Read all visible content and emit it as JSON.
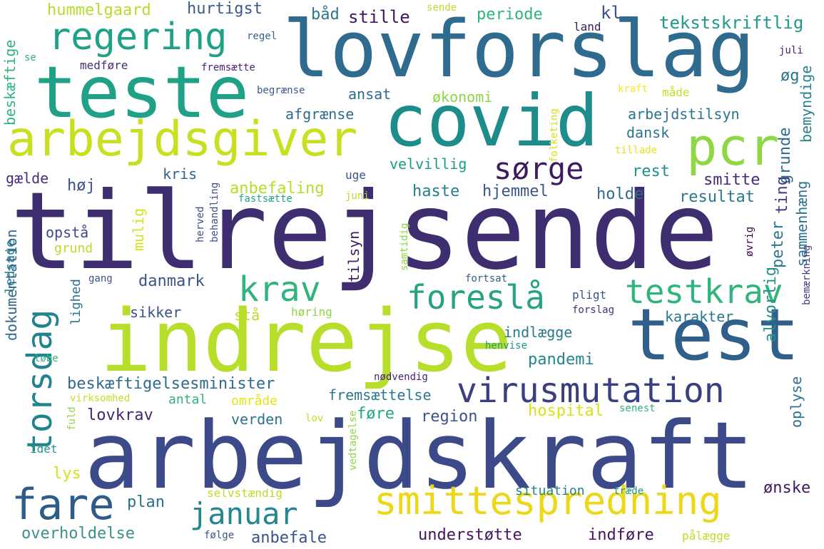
{
  "wordcloud": {
    "words": [
      {
        "text": "tilrejsende",
        "color": "#3e2d6f"
      },
      {
        "text": "arbejdskraft",
        "color": "#3d4a8a"
      },
      {
        "text": "indrejse",
        "color": "#b6de2b"
      },
      {
        "text": "lovforslag",
        "color": "#2e6b8e"
      },
      {
        "text": "covid",
        "color": "#1e8c8a"
      },
      {
        "text": "teste",
        "color": "#1fa187"
      },
      {
        "text": "test",
        "color": "#2f5f8a"
      },
      {
        "text": "arbejdsgiver",
        "color": "#c8e020"
      },
      {
        "text": "smittespredning",
        "color": "#ecd818"
      },
      {
        "text": "regering",
        "color": "#1fa187"
      },
      {
        "text": "pcr",
        "color": "#8fd744"
      },
      {
        "text": "fare",
        "color": "#2d5c8b"
      },
      {
        "text": "virusmutation",
        "color": "#3a3f7f"
      },
      {
        "text": "torsdag",
        "color": "#22838f"
      },
      {
        "text": "testkrav",
        "color": "#2fb47c"
      },
      {
        "text": "foreslå",
        "color": "#26a385"
      },
      {
        "text": "krav",
        "color": "#2fb47c"
      },
      {
        "text": "januar",
        "color": "#24868e"
      },
      {
        "text": "sørge",
        "color": "#3e1a5e"
      },
      {
        "text": "tekstskriftlig",
        "color": "#1f9a8a"
      },
      {
        "text": "hummelgaard",
        "color": "#b5de2b"
      },
      {
        "text": "hurtigst",
        "color": "#3b5a8b"
      },
      {
        "text": "båd",
        "color": "#2a788e"
      },
      {
        "text": "stille",
        "color": "#46135f"
      },
      {
        "text": "periode",
        "color": "#2fb47c"
      },
      {
        "text": "kl",
        "color": "#3b4f8a"
      },
      {
        "text": "sende",
        "color": "#b8de29"
      },
      {
        "text": "land",
        "color": "#3e1a5e"
      },
      {
        "text": "regel",
        "color": "#35608d"
      },
      {
        "text": "se",
        "color": "#2fb47c"
      },
      {
        "text": "juli",
        "color": "#481f70"
      },
      {
        "text": "medføre",
        "color": "#472e7c"
      },
      {
        "text": "fremsætte",
        "color": "#482475"
      },
      {
        "text": "begrænse",
        "color": "#3b5a8b"
      },
      {
        "text": "ansat",
        "color": "#2e6c8e"
      },
      {
        "text": "økonomi",
        "color": "#8bd646"
      },
      {
        "text": "kraft",
        "color": "#fde725"
      },
      {
        "text": "måde",
        "color": "#c2df23"
      },
      {
        "text": "øg",
        "color": "#2c728e"
      },
      {
        "text": "beskæftige",
        "color": "#2fb47c"
      },
      {
        "text": "afgrænse",
        "color": "#2e6b8e"
      },
      {
        "text": "arbejdstilsyn",
        "color": "#2c738e"
      },
      {
        "text": "bemyndige",
        "color": "#26828e"
      },
      {
        "text": "folketing",
        "color": "#d8e219"
      },
      {
        "text": "dansk",
        "color": "#2b758e"
      },
      {
        "text": "tillade",
        "color": "#e5e419"
      },
      {
        "text": "grunde",
        "color": "#2e6c8e"
      },
      {
        "text": "ting",
        "color": "#433d84"
      },
      {
        "text": "kris",
        "color": "#33638d"
      },
      {
        "text": "uge",
        "color": "#3b528b"
      },
      {
        "text": "velvillig",
        "color": "#1e9b8a"
      },
      {
        "text": "rest",
        "color": "#21918c"
      },
      {
        "text": "smitte",
        "color": "#482878"
      },
      {
        "text": "gælde",
        "color": "#472d7b"
      },
      {
        "text": "høj",
        "color": "#3b528b"
      },
      {
        "text": "anbefaling",
        "color": "#b5de2b"
      },
      {
        "text": "haste",
        "color": "#277f8e"
      },
      {
        "text": "hjemmel",
        "color": "#39568c"
      },
      {
        "text": "holde",
        "color": "#31688e"
      },
      {
        "text": "resultat",
        "color": "#2a788e"
      },
      {
        "text": "fastsætte",
        "color": "#20a386"
      },
      {
        "text": "juni",
        "color": "#b5de2b"
      },
      {
        "text": "sammenhæng",
        "color": "#2c728e"
      },
      {
        "text": "opstå",
        "color": "#3e4989"
      },
      {
        "text": "mulig",
        "color": "#d8e219"
      },
      {
        "text": "herved",
        "color": "#3e4a89"
      },
      {
        "text": "behandling",
        "color": "#3b528b"
      },
      {
        "text": "peter",
        "color": "#2a788e"
      },
      {
        "text": "øvrig",
        "color": "#440154"
      },
      {
        "text": "samtidig",
        "color": "#8fd744"
      },
      {
        "text": "ledsage",
        "color": "#26828e"
      },
      {
        "text": "grund",
        "color": "#b8de29"
      },
      {
        "text": "tilsyn",
        "color": "#3e1a5e"
      },
      {
        "text": "gang",
        "color": "#3b528b"
      },
      {
        "text": "danmark",
        "color": "#3b528b"
      },
      {
        "text": "fortsat",
        "color": "#38598c"
      },
      {
        "text": "lighed",
        "color": "#2c728e"
      },
      {
        "text": "pligt",
        "color": "#3b528b"
      },
      {
        "text": "forslag",
        "color": "#472d7b"
      },
      {
        "text": "sikker",
        "color": "#3b528b"
      },
      {
        "text": "stå",
        "color": "#b8de29"
      },
      {
        "text": "høring",
        "color": "#8fd744"
      },
      {
        "text": "karakter",
        "color": "#2a788e"
      },
      {
        "text": "alvorlig",
        "color": "#21918c"
      },
      {
        "text": "indlægge",
        "color": "#2a788e"
      },
      {
        "text": "henvise",
        "color": "#1f9a8a"
      },
      {
        "text": "løbe",
        "color": "#2fb47c"
      },
      {
        "text": "bemærkning",
        "color": "#433d84"
      },
      {
        "text": "pandemi",
        "color": "#25848e"
      },
      {
        "text": "dokumentation",
        "color": "#31688e"
      },
      {
        "text": "beskæftigelsesminister",
        "color": "#2e6b8e"
      },
      {
        "text": "nødvendig",
        "color": "#482475"
      },
      {
        "text": "fremsættelse",
        "color": "#2a788e"
      },
      {
        "text": "virksomhed",
        "color": "#c2df23"
      },
      {
        "text": "antal",
        "color": "#2fb47c"
      },
      {
        "text": "område",
        "color": "#e5e419"
      },
      {
        "text": "hospital",
        "color": "#d8e219"
      },
      {
        "text": "senest",
        "color": "#2fb47c"
      },
      {
        "text": "lovkrav",
        "color": "#482475"
      },
      {
        "text": "verden",
        "color": "#2c728e"
      },
      {
        "text": "føre",
        "color": "#22a884"
      },
      {
        "text": "region",
        "color": "#3b528b"
      },
      {
        "text": "oplyse",
        "color": "#2c728e"
      },
      {
        "text": "fuld",
        "color": "#8fd744"
      },
      {
        "text": "lov",
        "color": "#c2df23"
      },
      {
        "text": "idet",
        "color": "#21918c"
      },
      {
        "text": "vedtagelse",
        "color": "#8fd744"
      },
      {
        "text": "lys",
        "color": "#d8e219"
      },
      {
        "text": "plan",
        "color": "#2c728e"
      },
      {
        "text": "selvstændig",
        "color": "#b8de29"
      },
      {
        "text": "situation",
        "color": "#26828e"
      },
      {
        "text": "træde",
        "color": "#1f9a8a"
      },
      {
        "text": "ønske",
        "color": "#3e1a5e"
      },
      {
        "text": "overholdelse",
        "color": "#3b8f8c"
      },
      {
        "text": "følge",
        "color": "#3b528b"
      },
      {
        "text": "anbefale",
        "color": "#3b528b"
      },
      {
        "text": "understøtte",
        "color": "#46135f"
      },
      {
        "text": "indføre",
        "color": "#46135f"
      },
      {
        "text": "pålægge",
        "color": "#b8de29"
      }
    ]
  }
}
